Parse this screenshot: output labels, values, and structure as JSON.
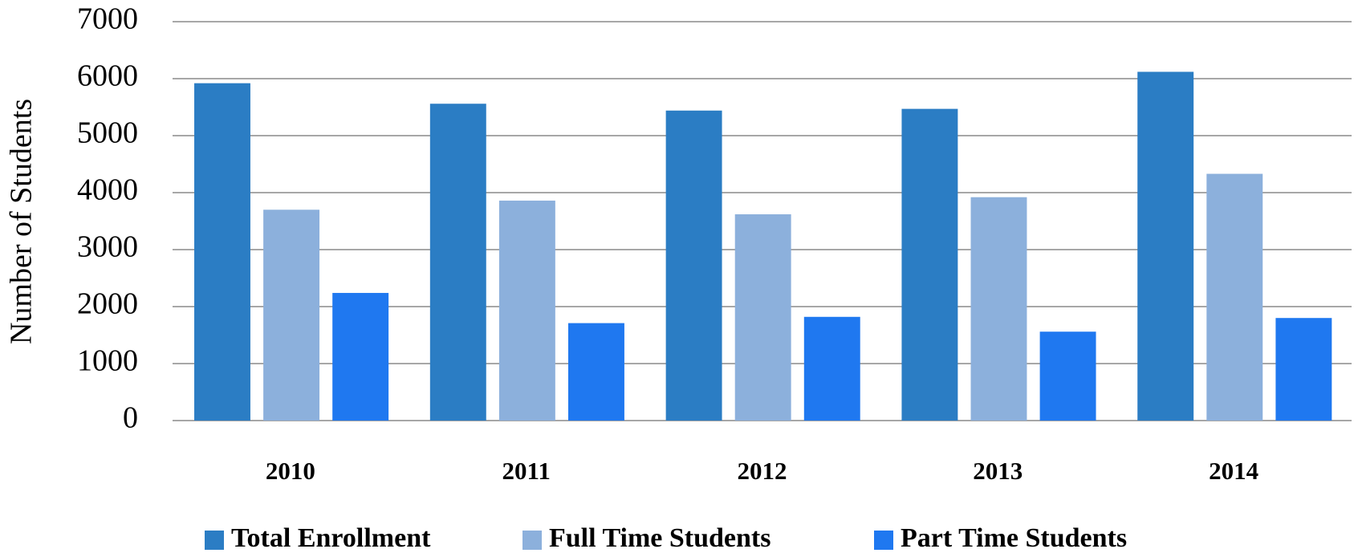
{
  "chart_data": {
    "type": "bar",
    "y_label": "Number of Students",
    "categories": [
      "2010",
      "2011",
      "2012",
      "2013",
      "2014"
    ],
    "series": [
      {
        "name": "Total Enrollment",
        "color": "#2b7dc4",
        "values": [
          5920,
          5560,
          5440,
          5470,
          6120
        ]
      },
      {
        "name": "Full Time Students",
        "color": "#8cb0dc",
        "values": [
          3700,
          3860,
          3620,
          3920,
          4330
        ]
      },
      {
        "name": "Part Time Students",
        "color": "#1f78f0",
        "values": [
          2240,
          1710,
          1820,
          1560,
          1800
        ]
      }
    ],
    "ylim": [
      0,
      7000
    ],
    "yticks": [
      0,
      1000,
      2000,
      3000,
      4000,
      5000,
      6000,
      7000
    ],
    "grid": true
  }
}
